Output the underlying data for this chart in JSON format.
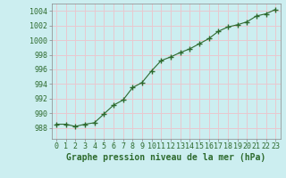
{
  "x": [
    0,
    1,
    2,
    3,
    4,
    5,
    6,
    7,
    8,
    9,
    10,
    11,
    12,
    13,
    14,
    15,
    16,
    17,
    18,
    19,
    20,
    21,
    22,
    23
  ],
  "y": [
    988.5,
    988.5,
    988.2,
    988.5,
    988.7,
    989.9,
    991.1,
    991.8,
    993.5,
    994.2,
    995.8,
    997.2,
    997.7,
    998.3,
    998.8,
    999.5,
    1000.2,
    1001.2,
    1001.8,
    1002.1,
    1002.5,
    1003.3,
    1003.6,
    1004.2
  ],
  "line_color": "#2d6a2d",
  "marker": "+",
  "marker_size": 4,
  "bg_color": "#cceef0",
  "grid_color": "#e8c8d0",
  "axis_color": "#888888",
  "tick_color": "#2d6a2d",
  "label_color": "#2d6a2d",
  "xlabel": "Graphe pression niveau de la mer (hPa)",
  "xlim": [
    -0.5,
    23.5
  ],
  "ylim": [
    986.5,
    1005.0
  ],
  "yticks": [
    988,
    990,
    992,
    994,
    996,
    998,
    1000,
    1002,
    1004
  ],
  "ytick_labels": [
    "988",
    "990",
    "992",
    "994",
    "996",
    "998",
    "1000",
    "1002",
    "1004"
  ],
  "xticks": [
    0,
    1,
    2,
    3,
    4,
    5,
    6,
    7,
    8,
    9,
    10,
    11,
    12,
    13,
    14,
    15,
    16,
    17,
    18,
    19,
    20,
    21,
    22,
    23
  ],
  "label_fontsize": 7,
  "tick_fontsize": 6
}
